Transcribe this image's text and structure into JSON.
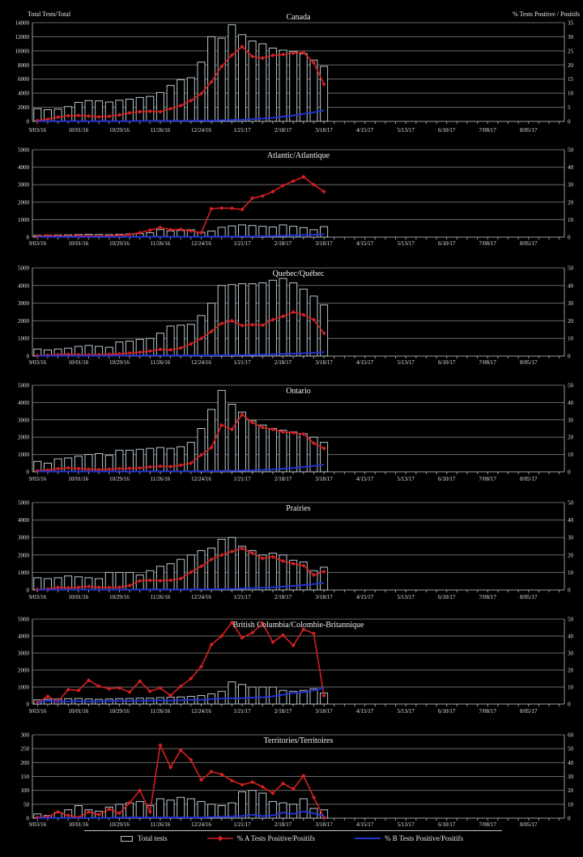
{
  "figure": {
    "background": "#000000",
    "text_color": "#e6e6ea",
    "bar_outline_color": "#b9c5cd",
    "flu_a_color": "#d42020",
    "flu_b_color": "#2233cc"
  },
  "axes": {
    "left_title": "Total Tests/Total",
    "right_title": "% Tests Positive / Positifs"
  },
  "legend": {
    "items": [
      {
        "label": "Total tests",
        "glyph": "bar-outline",
        "color": "#b9c5cd"
      },
      {
        "label": "% A Tests Positive/Positifs",
        "glyph": "red-line-diamond",
        "color": "#d42020"
      },
      {
        "label": "% B Tests Positive/Positifs",
        "glyph": "blue-line",
        "color": "#2233cc"
      }
    ]
  },
  "chart_data": [
    {
      "type": "combo",
      "title": "Canada",
      "left_axis": {
        "min": 0,
        "max": 14000,
        "step": 2000
      },
      "right_axis": {
        "min": 0,
        "max": 35,
        "step": 5
      },
      "x_axis": {
        "tick_labels": [
          "9/03/16",
          "10/01/16",
          "10/29/16",
          "11/26/16",
          "12/24/16",
          "1/21/17",
          "2/18/17",
          "3/18/17",
          "4/15/17",
          "5/13/17",
          "6/10/17",
          "7/08/17",
          "8/05/17"
        ],
        "weeks_total": 52,
        "label_every_n_weeks": 4
      },
      "series": [
        {
          "name": "Total tests",
          "type": "bar",
          "axis": "left",
          "color": "#b9c5cd",
          "values": [
            1800,
            1650,
            1750,
            2100,
            2700,
            2950,
            2900,
            2750,
            3000,
            3150,
            3400,
            3550,
            4100,
            5100,
            5900,
            6200,
            8400,
            12000,
            11800,
            13700,
            12300,
            11400,
            11000,
            10400,
            10100,
            9900,
            9600,
            8700,
            7800
          ]
        },
        {
          "name": "% A Tests Positive/Positifs",
          "type": "line",
          "axis": "right",
          "color": "#d42020",
          "marker": "diamond",
          "values": [
            0.3,
            0.8,
            1.5,
            2.0,
            2.1,
            1.9,
            1.6,
            1.8,
            2.3,
            3.0,
            3.4,
            3.6,
            3.4,
            4.5,
            5.6,
            7.4,
            9.8,
            14.0,
            19.5,
            23.5,
            26.5,
            23.0,
            22.4,
            23.4,
            23.7,
            24.2,
            24.4,
            20.8,
            13.2
          ]
        },
        {
          "name": "% B Tests Positive/Positifs",
          "type": "line",
          "axis": "right",
          "color": "#2233cc",
          "values": [
            0.1,
            0.1,
            0.1,
            0.1,
            0.1,
            0.1,
            0.1,
            0.1,
            0.1,
            0.1,
            0.15,
            0.15,
            0.2,
            0.2,
            0.2,
            0.25,
            0.3,
            0.3,
            0.4,
            0.5,
            0.6,
            0.8,
            1.0,
            1.3,
            1.7,
            2.1,
            2.6,
            3.2,
            3.9
          ]
        }
      ]
    },
    {
      "type": "combo",
      "title": "Atlantic/Atlantique",
      "left_axis": {
        "min": 0,
        "max": 5000,
        "step": 1000
      },
      "right_axis": {
        "min": 0,
        "max": 50,
        "step": 10
      },
      "x_axis": {
        "tick_labels": [
          "9/03/16",
          "10/01/16",
          "10/29/16",
          "11/26/16",
          "12/24/16",
          "1/21/17",
          "2/18/17",
          "3/18/17",
          "4/15/17",
          "5/13/17",
          "6/10/17",
          "7/08/17",
          "8/05/17"
        ],
        "weeks_total": 52,
        "label_every_n_weeks": 4
      },
      "series": [
        {
          "name": "Total tests",
          "type": "bar",
          "axis": "left",
          "color": "#b9c5cd",
          "values": [
            100,
            110,
            120,
            130,
            150,
            160,
            150,
            140,
            160,
            180,
            200,
            250,
            430,
            350,
            380,
            420,
            280,
            350,
            560,
            640,
            700,
            660,
            620,
            580,
            700,
            620,
            540,
            420,
            600
          ]
        },
        {
          "name": "% A Tests Positive/Positifs",
          "type": "line",
          "axis": "right",
          "color": "#d42020",
          "marker": "diamond",
          "values": [
            0.5,
            0.8,
            0.6,
            0.5,
            0.8,
            0.6,
            0.5,
            0.7,
            1.0,
            1.5,
            2.5,
            4.0,
            5.5,
            4.2,
            4.5,
            3.5,
            2.5,
            16.3,
            16.6,
            16.5,
            15.8,
            22.3,
            23.5,
            26.0,
            29.5,
            32.0,
            34.5,
            30.0,
            26.0
          ]
        },
        {
          "name": "% B Tests Positive/Positifs",
          "type": "line",
          "axis": "right",
          "color": "#2233cc",
          "values": [
            0.1,
            0.1,
            0.1,
            0.1,
            0.1,
            0.1,
            0.1,
            0.1,
            0.1,
            0.1,
            0.1,
            0.2,
            0.2,
            0.2,
            0.2,
            0.2,
            0.2,
            0.3,
            0.3,
            0.3,
            0.4,
            0.4,
            0.5,
            0.6,
            0.8,
            1.0,
            1.2,
            1.4,
            1.6
          ]
        }
      ]
    },
    {
      "type": "combo",
      "title": "Quebec/Québec",
      "left_axis": {
        "min": 0,
        "max": 5000,
        "step": 1000
      },
      "right_axis": {
        "min": 0,
        "max": 50,
        "step": 10
      },
      "x_axis": {
        "tick_labels": [
          "9/03/16",
          "10/01/16",
          "10/29/16",
          "11/26/16",
          "12/24/16",
          "1/21/17",
          "2/18/17",
          "3/18/17",
          "4/15/17",
          "5/13/17",
          "6/10/17",
          "7/08/17",
          "8/05/17"
        ],
        "weeks_total": 52,
        "label_every_n_weeks": 4
      },
      "series": [
        {
          "name": "Total tests",
          "type": "bar",
          "axis": "left",
          "color": "#b9c5cd",
          "values": [
            400,
            350,
            400,
            450,
            550,
            600,
            550,
            500,
            800,
            850,
            950,
            1000,
            1300,
            1700,
            1750,
            1800,
            2300,
            3000,
            4000,
            4050,
            4100,
            4100,
            4150,
            4300,
            4400,
            4150,
            3800,
            3400,
            2900
          ]
        },
        {
          "name": "% A Tests Positive/Positifs",
          "type": "line",
          "axis": "right",
          "color": "#d42020",
          "marker": "diamond",
          "values": [
            0.3,
            0.5,
            0.8,
            1.0,
            0.8,
            0.7,
            0.8,
            1.0,
            1.3,
            1.7,
            2.2,
            2.8,
            3.8,
            3.5,
            4.6,
            6.9,
            9.9,
            14.0,
            18.5,
            20.0,
            17.3,
            17.8,
            17.5,
            20.6,
            22.5,
            24.9,
            23.4,
            20.6,
            13.0
          ]
        },
        {
          "name": "% B Tests Positive/Positifs",
          "type": "line",
          "axis": "right",
          "color": "#2233cc",
          "values": [
            0.2,
            0.2,
            0.2,
            0.2,
            0.2,
            0.2,
            0.2,
            0.2,
            0.2,
            0.3,
            0.3,
            0.3,
            0.3,
            0.3,
            0.3,
            0.3,
            0.4,
            0.4,
            0.5,
            0.5,
            0.6,
            0.7,
            0.8,
            1.0,
            1.2,
            1.4,
            1.6,
            1.9,
            2.2
          ]
        }
      ]
    },
    {
      "type": "combo",
      "title": "Ontario",
      "left_axis": {
        "min": 0,
        "max": 5000,
        "step": 1000
      },
      "right_axis": {
        "min": 0,
        "max": 50,
        "step": 10
      },
      "x_axis": {
        "tick_labels": [
          "9/03/16",
          "10/01/16",
          "10/29/16",
          "11/26/16",
          "12/24/16",
          "1/21/17",
          "2/18/17",
          "3/18/17",
          "4/15/17",
          "5/13/17",
          "6/10/17",
          "7/08/17",
          "8/05/17"
        ],
        "weeks_total": 52,
        "label_every_n_weeks": 4
      },
      "series": [
        {
          "name": "Total tests",
          "type": "bar",
          "axis": "left",
          "color": "#b9c5cd",
          "values": [
            600,
            500,
            750,
            800,
            900,
            1000,
            1050,
            950,
            1250,
            1250,
            1300,
            1350,
            1400,
            1350,
            1450,
            1700,
            2500,
            3600,
            4700,
            3900,
            3450,
            2950,
            2700,
            2500,
            2400,
            2300,
            2200,
            2000,
            1700
          ]
        },
        {
          "name": "% A Tests Positive/Positifs",
          "type": "line",
          "axis": "right",
          "color": "#d42020",
          "marker": "diamond",
          "values": [
            0.5,
            1.0,
            1.8,
            2.2,
            1.8,
            1.5,
            1.2,
            1.5,
            1.8,
            2.0,
            2.2,
            2.8,
            3.2,
            3.0,
            3.8,
            5.0,
            9.7,
            14.0,
            27.0,
            24.5,
            33.0,
            28.5,
            25.5,
            24.5,
            23.0,
            22.5,
            21.8,
            16.5,
            13.5
          ]
        },
        {
          "name": "% B Tests Positive/Positifs",
          "type": "line",
          "axis": "right",
          "color": "#2233cc",
          "values": [
            0.2,
            0.2,
            0.2,
            0.2,
            0.2,
            0.2,
            0.2,
            0.2,
            0.2,
            0.2,
            0.2,
            0.3,
            0.3,
            0.3,
            0.3,
            0.3,
            0.4,
            0.4,
            0.5,
            0.6,
            0.7,
            0.9,
            1.1,
            1.4,
            1.8,
            2.2,
            2.8,
            3.4,
            4.2
          ]
        }
      ]
    },
    {
      "type": "combo",
      "title": "Prairies",
      "left_axis": {
        "min": 0,
        "max": 5000,
        "step": 1000
      },
      "right_axis": {
        "min": 0,
        "max": 50,
        "step": 10
      },
      "x_axis": {
        "tick_labels": [
          "9/03/16",
          "10/01/16",
          "10/29/16",
          "11/26/16",
          "12/24/16",
          "1/21/17",
          "2/18/17",
          "3/18/17",
          "4/15/17",
          "5/13/17",
          "6/10/17",
          "7/08/17",
          "8/05/17"
        ],
        "weeks_total": 52,
        "label_every_n_weeks": 4
      },
      "series": [
        {
          "name": "Total tests",
          "type": "bar",
          "axis": "left",
          "color": "#b9c5cd",
          "values": [
            700,
            650,
            700,
            800,
            750,
            700,
            650,
            1000,
            1000,
            1000,
            850,
            1100,
            1350,
            1500,
            1750,
            2000,
            2250,
            2400,
            2900,
            3000,
            2500,
            2250,
            2000,
            2100,
            2000,
            1700,
            1600,
            1100,
            1300
          ]
        },
        {
          "name": "% A Tests Positive/Positifs",
          "type": "line",
          "axis": "right",
          "color": "#d42020",
          "marker": "diamond",
          "values": [
            0.3,
            0.5,
            1.5,
            1.2,
            1.5,
            2.0,
            1.5,
            1.4,
            1.5,
            2.5,
            5.3,
            5.5,
            5.3,
            5.5,
            6.5,
            10.2,
            13.5,
            17.5,
            20.0,
            22.0,
            23.8,
            21.0,
            18.0,
            19.0,
            16.5,
            15.0,
            14.0,
            8.5,
            10.5
          ]
        },
        {
          "name": "% B Tests Positive/Positifs",
          "type": "line",
          "axis": "right",
          "color": "#2233cc",
          "values": [
            0.2,
            0.2,
            0.2,
            0.2,
            0.2,
            0.2,
            0.2,
            0.2,
            0.2,
            0.2,
            0.2,
            0.3,
            0.3,
            0.3,
            0.3,
            0.3,
            0.4,
            0.4,
            0.5,
            0.6,
            0.8,
            1.0,
            1.2,
            1.5,
            1.9,
            2.3,
            2.8,
            3.4,
            4.0
          ]
        }
      ]
    },
    {
      "type": "combo",
      "title": "British Columbia/Colombie-Britannique",
      "left_axis": {
        "min": 0,
        "max": 5000,
        "step": 1000
      },
      "right_axis": {
        "min": 0,
        "max": 50,
        "step": 10
      },
      "x_axis": {
        "tick_labels": [
          "9/03/16",
          "10/01/16",
          "10/29/16",
          "11/26/16",
          "12/24/16",
          "1/21/17",
          "2/18/17",
          "3/18/17",
          "4/15/17",
          "5/13/17",
          "6/10/17",
          "7/08/17",
          "8/05/17"
        ],
        "weeks_total": 52,
        "label_every_n_weeks": 4
      },
      "series": [
        {
          "name": "Total tests",
          "type": "bar",
          "axis": "left",
          "color": "#b9c5cd",
          "values": [
            250,
            280,
            300,
            320,
            330,
            300,
            280,
            300,
            320,
            330,
            350,
            350,
            380,
            400,
            420,
            450,
            500,
            600,
            750,
            1300,
            1150,
            1000,
            1000,
            1000,
            800,
            750,
            800,
            900,
            650
          ]
        },
        {
          "name": "% A Tests Positive/Positifs",
          "type": "line",
          "axis": "right",
          "color": "#d42020",
          "marker": "diamond",
          "values": [
            1.0,
            4.5,
            1.5,
            8.5,
            8.0,
            14.0,
            10.5,
            9.0,
            9.5,
            7.0,
            13.5,
            7.5,
            9.5,
            5.0,
            10.5,
            15.0,
            22.0,
            35.0,
            40.0,
            48.0,
            39.0,
            42.0,
            47.5,
            36.5,
            40.5,
            34.5,
            44.0,
            41.5,
            5.0
          ]
        },
        {
          "name": "% B Tests Positive/Positifs",
          "type": "line",
          "axis": "right",
          "color": "#2233cc",
          "values": [
            1.0,
            2.0,
            1.5,
            1.5,
            1.8,
            1.5,
            1.5,
            1.8,
            2.0,
            1.8,
            2.0,
            2.0,
            2.2,
            2.0,
            2.2,
            2.5,
            2.5,
            3.0,
            3.2,
            3.5,
            3.5,
            3.8,
            4.0,
            4.5,
            5.5,
            6.5,
            7.0,
            8.0,
            9.5
          ]
        }
      ]
    },
    {
      "type": "combo",
      "title": "Territories/Territoires",
      "left_axis": {
        "min": 0,
        "max": 300,
        "step": 50
      },
      "right_axis": {
        "min": 0,
        "max": 60,
        "step": 10
      },
      "x_axis": {
        "tick_labels": [
          "9/03/16",
          "10/01/16",
          "10/29/16",
          "11/26/16",
          "12/24/16",
          "1/21/17",
          "2/18/17",
          "3/18/17",
          "4/15/17",
          "5/13/17",
          "6/10/17",
          "7/08/17",
          "8/05/17"
        ],
        "weeks_total": 52,
        "label_every_n_weeks": 4
      },
      "series": [
        {
          "name": "Total tests",
          "type": "bar",
          "axis": "left",
          "color": "#b9c5cd",
          "values": [
            15,
            10,
            20,
            30,
            45,
            30,
            25,
            40,
            50,
            55,
            60,
            45,
            70,
            65,
            75,
            70,
            60,
            50,
            45,
            55,
            95,
            100,
            90,
            60,
            55,
            50,
            70,
            35,
            30
          ]
        },
        {
          "name": "% A Tests Positive/Positifs",
          "type": "line",
          "axis": "right",
          "color": "#d42020",
          "marker": "diamond",
          "values": [
            0.5,
            1.0,
            4.5,
            2.0,
            0.5,
            4.5,
            2.5,
            6.5,
            3.5,
            11.0,
            20.0,
            4.5,
            52.5,
            36.5,
            49.0,
            42.0,
            27.5,
            33.5,
            31.5,
            27.0,
            24.0,
            26.0,
            22.5,
            18.0,
            25.0,
            21.0,
            30.5,
            15.0,
            0.5
          ]
        },
        {
          "name": "% B Tests Positive/Positifs",
          "type": "line",
          "axis": "right",
          "color": "#2233cc",
          "values": [
            0.2,
            0.2,
            0.2,
            0.2,
            0.2,
            0.2,
            0.2,
            0.2,
            0.5,
            0.5,
            0.5,
            0.5,
            0.5,
            0.5,
            0.5,
            0.5,
            0.5,
            0.8,
            1.0,
            1.2,
            1.5,
            2.5,
            1.5,
            2.0,
            4.0,
            3.0,
            4.8,
            3.5,
            1.5
          ]
        }
      ]
    }
  ]
}
